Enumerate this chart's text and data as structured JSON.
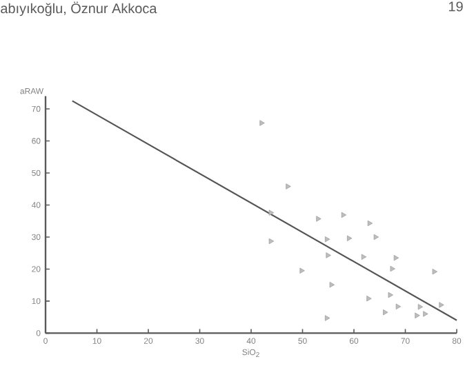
{
  "chart_data": {
    "type": "scatter",
    "xlabel": "SiO$_{2}$",
    "ylabel": "aRAW",
    "annotations": [
      "abıyıkoğlu, Öznur Akkoca",
      "19"
    ],
    "xlim": [
      0,
      80
    ],
    "xticks": [
      0,
      10,
      20,
      30,
      40,
      50,
      60,
      70,
      80
    ],
    "ylim": [
      0,
      74
    ],
    "yticks": [
      0,
      10,
      20,
      30,
      40,
      50,
      60,
      70
    ],
    "grid": false,
    "marker": "triangle",
    "series": [
      {
        "color": "#a0a0a0",
        "x": [
          42,
          47.1,
          43.8,
          43.8,
          53,
          57.9,
          63,
          54.7,
          59,
          64.2,
          54.9,
          61.8,
          68.1,
          49.8,
          67.4,
          75.6,
          55.6,
          62.8,
          67,
          68.5,
          66,
          72.8,
          72.2,
          73.8,
          76.9,
          54.7
        ],
        "values": [
          65.6,
          45.8,
          37.6,
          28.7,
          35.7,
          36.9,
          34.3,
          29.3,
          29.6,
          30,
          24.3,
          23.8,
          23.5,
          19.5,
          20.1,
          19.2,
          15.1,
          10.8,
          11.9,
          8.3,
          6.5,
          8.2,
          5.5,
          6,
          8.8,
          4.7
        ]
      },
      {
        "type": "line",
        "color": "#555555",
        "marker": "none",
        "x": [
          5.2,
          80
        ],
        "values": [
          72.5,
          4
        ]
      }
    ]
  }
}
